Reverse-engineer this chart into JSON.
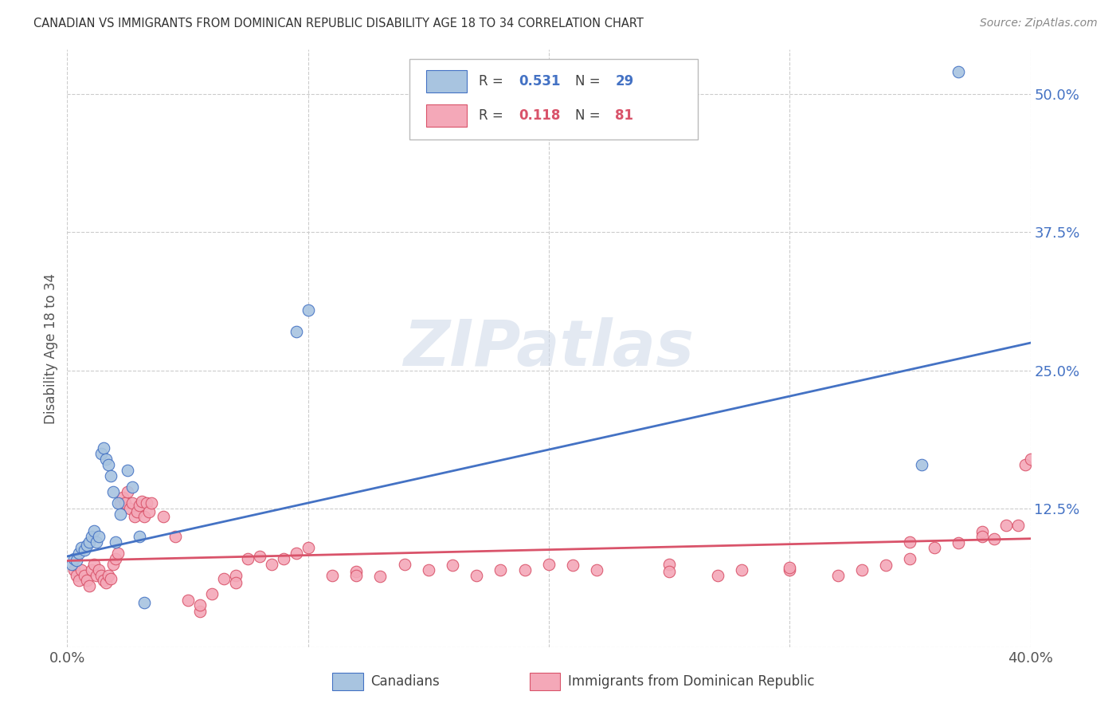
{
  "title": "CANADIAN VS IMMIGRANTS FROM DOMINICAN REPUBLIC DISABILITY AGE 18 TO 34 CORRELATION CHART",
  "source": "Source: ZipAtlas.com",
  "ylabel": "Disability Age 18 to 34",
  "ytick_values": [
    0.0,
    0.125,
    0.25,
    0.375,
    0.5
  ],
  "ytick_labels": [
    "",
    "12.5%",
    "25.0%",
    "37.5%",
    "50.0%"
  ],
  "xtick_values": [
    0.0,
    0.4
  ],
  "xtick_labels": [
    "0.0%",
    "40.0%"
  ],
  "xlim": [
    0.0,
    0.4
  ],
  "ylim": [
    0.0,
    0.54
  ],
  "canadians_R": "0.531",
  "canadians_N": "29",
  "immigrants_R": "0.118",
  "immigrants_N": "81",
  "canadian_color": "#a8c4e0",
  "immigrant_color": "#f4a8b8",
  "canadian_line_color": "#4472c4",
  "immigrant_line_color": "#d9536a",
  "background_color": "#ffffff",
  "watermark": "ZIPatlas",
  "canadians_x": [
    0.002,
    0.003,
    0.004,
    0.005,
    0.006,
    0.007,
    0.008,
    0.009,
    0.01,
    0.011,
    0.012,
    0.013,
    0.014,
    0.015,
    0.016,
    0.017,
    0.018,
    0.019,
    0.02,
    0.021,
    0.022,
    0.025,
    0.027,
    0.03,
    0.032,
    0.095,
    0.1,
    0.355,
    0.37
  ],
  "canadians_y": [
    0.075,
    0.08,
    0.078,
    0.085,
    0.09,
    0.088,
    0.092,
    0.095,
    0.1,
    0.105,
    0.095,
    0.1,
    0.175,
    0.18,
    0.17,
    0.165,
    0.155,
    0.14,
    0.095,
    0.13,
    0.12,
    0.16,
    0.145,
    0.1,
    0.04,
    0.285,
    0.305,
    0.165,
    0.52
  ],
  "immigrants_x": [
    0.003,
    0.004,
    0.005,
    0.006,
    0.007,
    0.008,
    0.009,
    0.01,
    0.011,
    0.012,
    0.013,
    0.014,
    0.015,
    0.016,
    0.017,
    0.018,
    0.019,
    0.02,
    0.021,
    0.022,
    0.023,
    0.024,
    0.025,
    0.026,
    0.027,
    0.028,
    0.029,
    0.03,
    0.031,
    0.032,
    0.033,
    0.034,
    0.035,
    0.04,
    0.045,
    0.05,
    0.055,
    0.06,
    0.065,
    0.07,
    0.075,
    0.08,
    0.085,
    0.09,
    0.095,
    0.1,
    0.11,
    0.12,
    0.13,
    0.14,
    0.15,
    0.16,
    0.17,
    0.18,
    0.19,
    0.2,
    0.21,
    0.22,
    0.25,
    0.27,
    0.28,
    0.3,
    0.32,
    0.33,
    0.34,
    0.35,
    0.36,
    0.37,
    0.38,
    0.39,
    0.395,
    0.398,
    0.4,
    0.38,
    0.385,
    0.055,
    0.12,
    0.25,
    0.3,
    0.35,
    0.07
  ],
  "immigrants_y": [
    0.07,
    0.065,
    0.06,
    0.07,
    0.065,
    0.06,
    0.055,
    0.07,
    0.075,
    0.065,
    0.07,
    0.065,
    0.06,
    0.058,
    0.065,
    0.062,
    0.075,
    0.08,
    0.085,
    0.13,
    0.135,
    0.13,
    0.14,
    0.125,
    0.13,
    0.118,
    0.122,
    0.128,
    0.132,
    0.118,
    0.13,
    0.122,
    0.13,
    0.118,
    0.1,
    0.042,
    0.032,
    0.048,
    0.062,
    0.065,
    0.08,
    0.082,
    0.075,
    0.08,
    0.085,
    0.09,
    0.065,
    0.068,
    0.064,
    0.075,
    0.07,
    0.074,
    0.065,
    0.07,
    0.07,
    0.075,
    0.074,
    0.07,
    0.075,
    0.065,
    0.07,
    0.07,
    0.065,
    0.07,
    0.074,
    0.08,
    0.09,
    0.094,
    0.104,
    0.11,
    0.11,
    0.165,
    0.17,
    0.1,
    0.098,
    0.038,
    0.065,
    0.068,
    0.072,
    0.095,
    0.058
  ],
  "can_line_x0": 0.0,
  "can_line_y0": 0.082,
  "can_line_x1": 0.4,
  "can_line_y1": 0.275,
  "imm_line_x0": 0.0,
  "imm_line_y0": 0.078,
  "imm_line_x1": 0.4,
  "imm_line_y1": 0.098
}
